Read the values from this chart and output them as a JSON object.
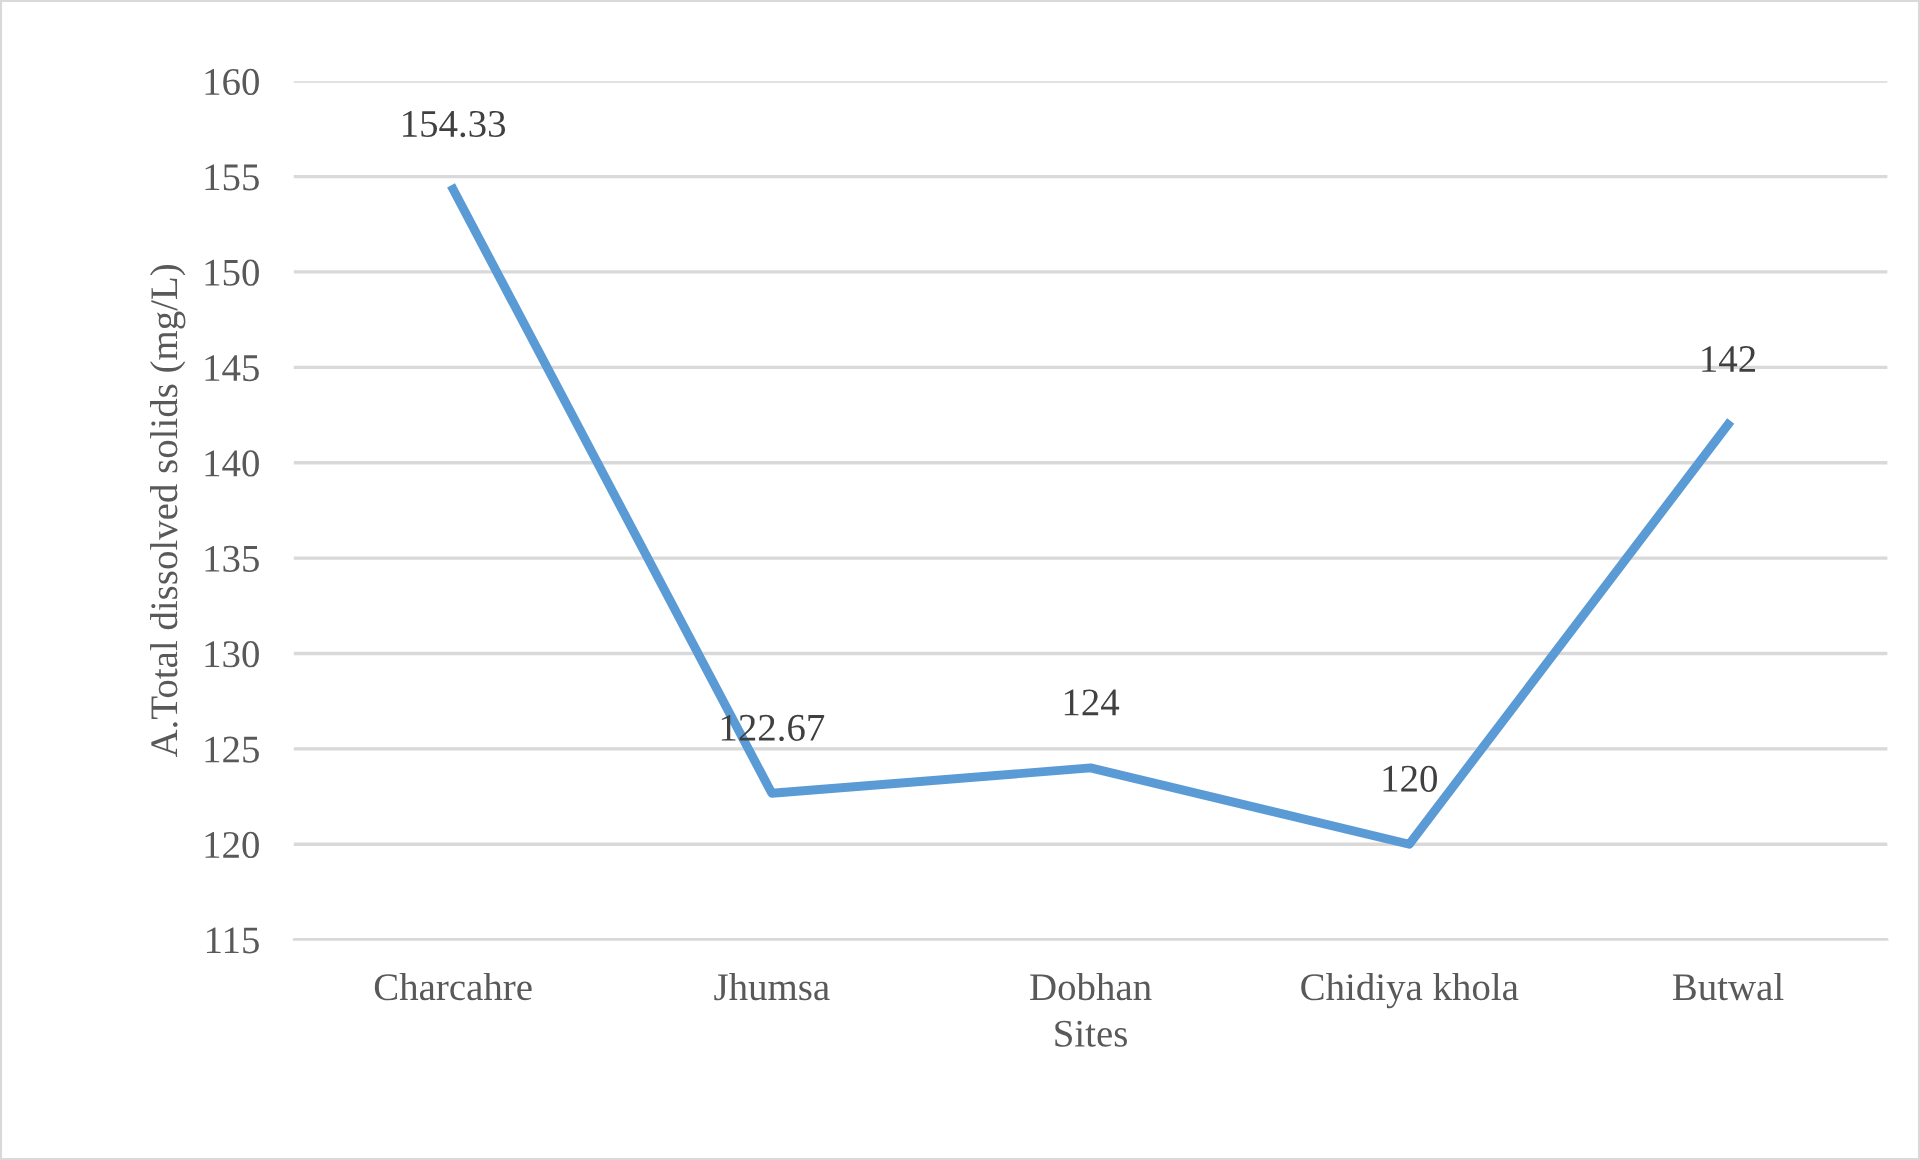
{
  "chart_data": {
    "type": "line",
    "xlabel": "Sites",
    "ylabel": "A.Total dissolved solids (mg/L)",
    "categories": [
      "Charcahre",
      "Jhumsa",
      "Dobhan",
      "Chidiya khola",
      "Butwal"
    ],
    "series": [
      {
        "color": "#5b9bd5",
        "values": [
          154.33,
          122.67,
          124,
          120,
          142
        ]
      }
    ],
    "ylim": [
      115,
      160
    ],
    "yticks": [
      115,
      120,
      125,
      130,
      135,
      140,
      145,
      150,
      155,
      160
    ],
    "grid": "y",
    "data_labels": true,
    "marker": "none",
    "line_style": "solid"
  }
}
